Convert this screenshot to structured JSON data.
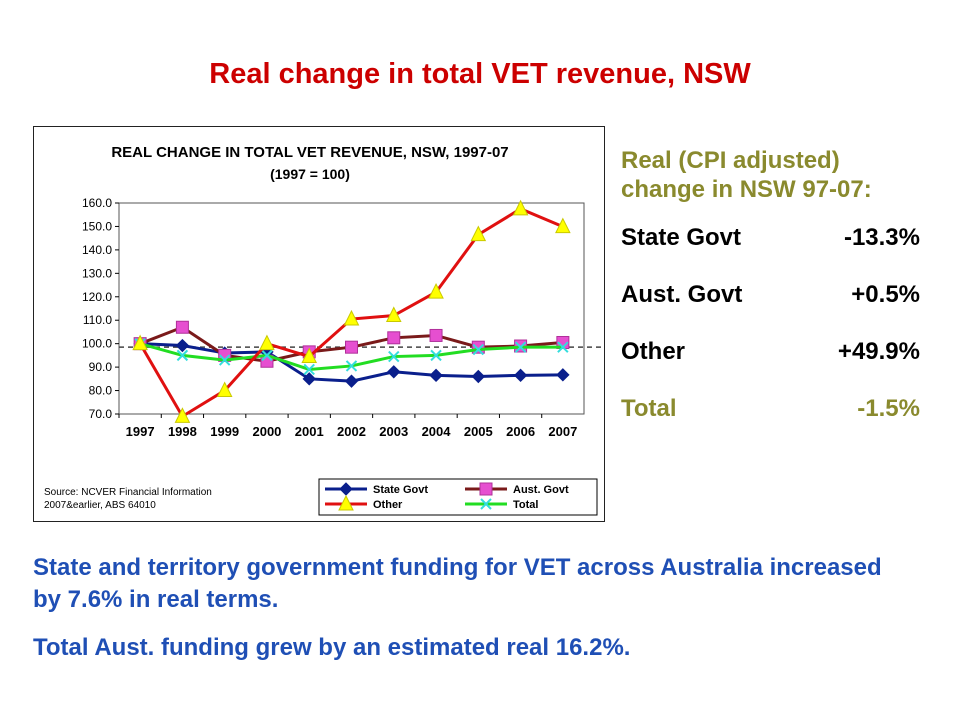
{
  "slide": {
    "title": "Real change in total VET revenue, NSW"
  },
  "side_panel": {
    "heading": "Real (CPI adjusted) change in NSW 97-07:",
    "rows": [
      {
        "label": "State Govt",
        "value": "-13.3%"
      },
      {
        "label": "Aust. Govt",
        "value": "+0.5%"
      },
      {
        "label": "Other",
        "value": "+49.9%"
      },
      {
        "label": "Total",
        "value": "-1.5%"
      }
    ]
  },
  "bottom": {
    "line1": "State and territory government funding for VET across Australia increased by 7.6% in real terms.",
    "line2": "Total Aust. funding grew by an estimated real 16.2%."
  },
  "chart_data": {
    "type": "line",
    "title": "REAL CHANGE IN TOTAL VET REVENUE, NSW, 1997-07",
    "subtitle": "(1997 = 100)",
    "source": [
      "Source: NCVER Financial Information",
      "2007&earlier, ABS 64010"
    ],
    "categories": [
      "1997",
      "1998",
      "1999",
      "2000",
      "2001",
      "2002",
      "2003",
      "2004",
      "2005",
      "2006",
      "2007"
    ],
    "y_ticks": [
      "70.0",
      "80.0",
      "90.0",
      "100.0",
      "110.0",
      "120.0",
      "130.0",
      "140.0",
      "150.0",
      "160.0"
    ],
    "ylim": [
      70,
      160
    ],
    "reference_line": 98.5,
    "legend_position": "bottom",
    "series": [
      {
        "name": "State Govt",
        "color": "#0a1f8c",
        "line_color": "#0a1f8c",
        "marker": "diamond",
        "values": [
          100,
          99.2,
          96,
          96.5,
          85,
          84,
          88,
          86.5,
          86,
          86.5,
          86.7
        ]
      },
      {
        "name": "Aust. Govt",
        "color": "#e64fd0",
        "line_color": "#7a1a1a",
        "marker": "square",
        "values": [
          100,
          107,
          95,
          92.5,
          96.5,
          98.5,
          102.5,
          103.5,
          98.5,
          99,
          100.5
        ]
      },
      {
        "name": "Other",
        "color": "#ffff00",
        "line_color": "#e01010",
        "marker": "triangle",
        "values": [
          100,
          69,
          80,
          100,
          94.5,
          110.5,
          112,
          122,
          146.5,
          157.5,
          149.9
        ]
      },
      {
        "name": "Total",
        "color": "#33dddd",
        "line_color": "#22dd22",
        "marker": "x",
        "values": [
          100,
          95,
          93,
          95,
          89,
          90.5,
          94.5,
          95,
          97.5,
          98.5,
          98.5
        ]
      }
    ]
  }
}
